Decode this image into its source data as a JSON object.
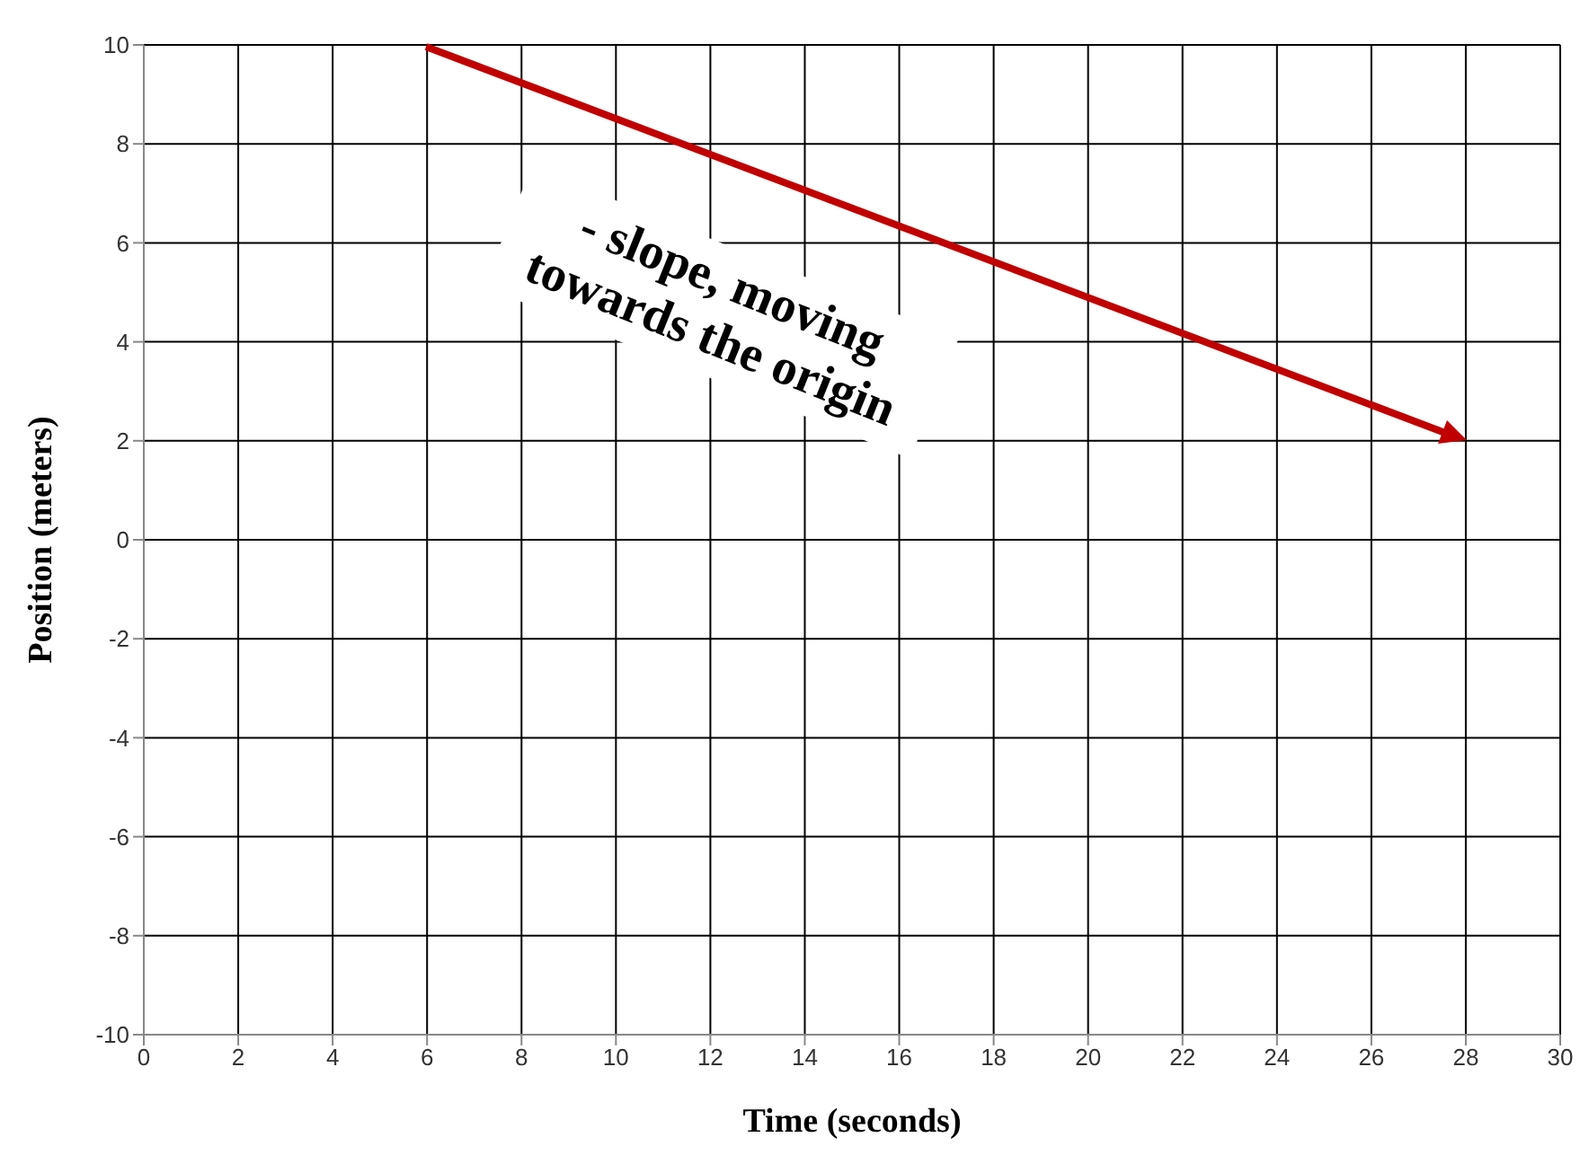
{
  "chart_data": {
    "type": "line",
    "xlabel": "Time (seconds)",
    "ylabel": "Position (meters)",
    "xlim": [
      0,
      30
    ],
    "xticks": [
      0,
      2,
      4,
      6,
      8,
      10,
      12,
      14,
      16,
      18,
      20,
      22,
      24,
      26,
      28,
      30
    ],
    "ylim": [
      -10,
      10
    ],
    "yticks": [
      -10,
      -8,
      -6,
      -4,
      -2,
      0,
      2,
      4,
      6,
      8,
      10
    ],
    "grid": true,
    "annotations": [
      "- slope, moving towards the origin"
    ]
  }
}
